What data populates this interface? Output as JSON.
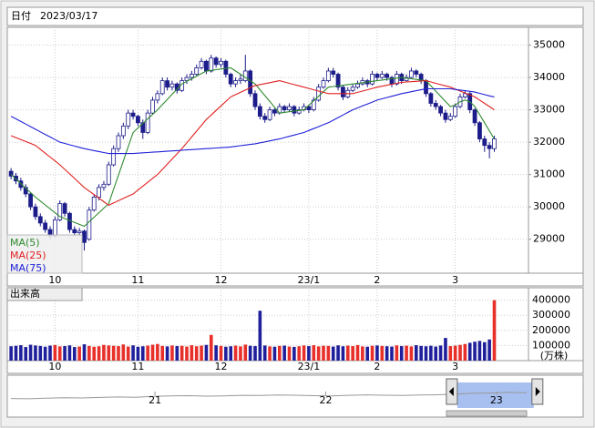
{
  "header": {
    "label": "日付",
    "date": "2023/03/17"
  },
  "chart_data": {
    "type": "candlestick",
    "categories": [
      null,
      null,
      null,
      null,
      null,
      null,
      null,
      null,
      null,
      "10",
      null,
      null,
      null,
      null,
      null,
      null,
      null,
      null,
      null,
      null,
      null,
      null,
      null,
      null,
      null,
      null,
      "11",
      null,
      null,
      null,
      null,
      null,
      null,
      null,
      null,
      null,
      null,
      null,
      null,
      null,
      null,
      null,
      null,
      "12",
      null,
      null,
      null,
      null,
      null,
      null,
      null,
      null,
      null,
      null,
      null,
      null,
      null,
      null,
      null,
      null,
      null,
      "23/1",
      null,
      null,
      null,
      null,
      null,
      null,
      null,
      null,
      null,
      null,
      null,
      null,
      null,
      "2",
      null,
      null,
      null,
      null,
      null,
      null,
      null,
      null,
      null,
      null,
      null,
      null,
      null,
      null,
      null,
      "3",
      null,
      null,
      null,
      null,
      null,
      null,
      null,
      null
    ],
    "candles": [
      [
        31100,
        31200,
        30850,
        30950
      ],
      [
        30950,
        31050,
        30700,
        30800
      ],
      [
        30800,
        30900,
        30500,
        30600
      ],
      [
        30600,
        30700,
        30300,
        30400
      ],
      [
        30400,
        30450,
        29900,
        30000
      ],
      [
        30000,
        30100,
        29600,
        29700
      ],
      [
        29700,
        29800,
        29400,
        29500
      ],
      [
        29500,
        29600,
        29200,
        29300
      ],
      [
        29300,
        29400,
        29000,
        29100
      ],
      [
        29100,
        29700,
        29050,
        29600
      ],
      [
        29600,
        30200,
        29550,
        30100
      ],
      [
        30100,
        30150,
        29700,
        29800
      ],
      [
        29800,
        29850,
        29200,
        29300
      ],
      [
        29300,
        29400,
        29100,
        29200
      ],
      [
        29200,
        29350,
        29100,
        29250
      ],
      [
        29250,
        29300,
        28650,
        28900
      ],
      [
        29000,
        30000,
        28950,
        29900
      ],
      [
        29900,
        30400,
        29850,
        30300
      ],
      [
        30300,
        30700,
        30200,
        30600
      ],
      [
        30600,
        30800,
        30500,
        30700
      ],
      [
        30700,
        31400,
        30650,
        31300
      ],
      [
        31300,
        31900,
        31250,
        31800
      ],
      [
        31800,
        32300,
        31700,
        32200
      ],
      [
        32200,
        32600,
        32100,
        32500
      ],
      [
        32500,
        33000,
        32400,
        32900
      ],
      [
        32900,
        33000,
        32700,
        32800
      ],
      [
        32800,
        32850,
        32500,
        32600
      ],
      [
        32600,
        32700,
        32100,
        32300
      ],
      [
        32300,
        33000,
        32250,
        32900
      ],
      [
        32900,
        33400,
        32850,
        33300
      ],
      [
        33300,
        33600,
        33200,
        33500
      ],
      [
        33500,
        34000,
        33450,
        33900
      ],
      [
        33900,
        34000,
        33600,
        33700
      ],
      [
        33700,
        33900,
        33600,
        33800
      ],
      [
        33800,
        33850,
        33500,
        33600
      ],
      [
        33600,
        34000,
        33550,
        33900
      ],
      [
        33900,
        34100,
        33800,
        34000
      ],
      [
        34000,
        34200,
        33900,
        34100
      ],
      [
        34100,
        34400,
        34050,
        34300
      ],
      [
        34300,
        34600,
        34250,
        34500
      ],
      [
        34500,
        34550,
        34100,
        34200
      ],
      [
        34200,
        34700,
        34150,
        34600
      ],
      [
        34600,
        34650,
        34300,
        34400
      ],
      [
        34400,
        34600,
        34300,
        34500
      ],
      [
        34500,
        34550,
        34000,
        34100
      ],
      [
        34100,
        34150,
        33700,
        33800
      ],
      [
        33800,
        34000,
        33700,
        33900
      ],
      [
        33900,
        34100,
        33800,
        33950
      ],
      [
        33900,
        34700,
        33850,
        34200
      ],
      [
        34200,
        34250,
        33400,
        33500
      ],
      [
        33500,
        33600,
        33000,
        33100
      ],
      [
        33100,
        33200,
        32700,
        32800
      ],
      [
        32800,
        32900,
        32600,
        32700
      ],
      [
        32700,
        33100,
        32650,
        33000
      ],
      [
        33000,
        33050,
        32800,
        32900
      ],
      [
        32900,
        33200,
        32850,
        33100
      ],
      [
        33100,
        33150,
        32900,
        33000
      ],
      [
        33000,
        33200,
        32950,
        33100
      ],
      [
        33100,
        33150,
        32800,
        32900
      ],
      [
        32900,
        33100,
        32850,
        33000
      ],
      [
        33000,
        33200,
        32950,
        33100
      ],
      [
        33100,
        33150,
        32900,
        33000
      ],
      [
        33000,
        33400,
        32950,
        33300
      ],
      [
        33300,
        33800,
        33250,
        33700
      ],
      [
        33700,
        34000,
        33650,
        33900
      ],
      [
        33900,
        34300,
        33850,
        34200
      ],
      [
        34200,
        34300,
        34000,
        34100
      ],
      [
        34100,
        34150,
        33600,
        33700
      ],
      [
        33700,
        33750,
        33300,
        33400
      ],
      [
        33400,
        33700,
        33350,
        33600
      ],
      [
        33600,
        33800,
        33550,
        33700
      ],
      [
        33700,
        33900,
        33650,
        33800
      ],
      [
        33800,
        34000,
        33750,
        33900
      ],
      [
        33900,
        33950,
        33700,
        33800
      ],
      [
        33800,
        34200,
        33750,
        34100
      ],
      [
        34100,
        34150,
        33900,
        34000
      ],
      [
        34000,
        34200,
        33950,
        34100
      ],
      [
        34100,
        34150,
        33900,
        34000
      ],
      [
        34000,
        34050,
        33700,
        33800
      ],
      [
        33800,
        34200,
        33750,
        34100
      ],
      [
        34100,
        34150,
        33800,
        33900
      ],
      [
        33900,
        34100,
        33850,
        34000
      ],
      [
        34000,
        34300,
        33950,
        34200
      ],
      [
        34200,
        34250,
        34000,
        34100
      ],
      [
        34100,
        34150,
        33800,
        33900
      ],
      [
        33900,
        33950,
        33400,
        33500
      ],
      [
        33500,
        33550,
        33100,
        33200
      ],
      [
        33200,
        33300,
        33000,
        33100
      ],
      [
        33100,
        33150,
        32800,
        32900
      ],
      [
        32900,
        33000,
        32600,
        32700
      ],
      [
        32700,
        32900,
        32650,
        32800
      ],
      [
        32800,
        33200,
        32750,
        33100
      ],
      [
        33100,
        33500,
        33050,
        33400
      ],
      [
        33400,
        33600,
        33350,
        33500
      ],
      [
        33500,
        33550,
        32900,
        33000
      ],
      [
        33000,
        33050,
        32500,
        32600
      ],
      [
        32600,
        32650,
        32000,
        32100
      ],
      [
        32100,
        32200,
        31700,
        31900
      ],
      [
        31900,
        32000,
        31500,
        31800
      ],
      [
        31800,
        32200,
        31700,
        32100
      ]
    ],
    "up_color": "#ffffff",
    "down_color": "#1c1c8a",
    "wick_color": "#1c1c8a",
    "series": [
      {
        "name": "MA(5)",
        "color": "#2e8b2e",
        "values": [
          31000,
          30860,
          30720,
          30580,
          30440,
          30300,
          30180,
          30060,
          29940,
          29820,
          29700,
          29640,
          29580,
          29520,
          29460,
          29400,
          29540,
          29680,
          29820,
          29960,
          30100,
          30540,
          30980,
          31420,
          31860,
          32300,
          32440,
          32580,
          32720,
          32860,
          33000,
          33160,
          33320,
          33480,
          33640,
          33800,
          33880,
          33960,
          34040,
          34120,
          34200,
          34220,
          34240,
          34260,
          34280,
          34300,
          34200,
          34100,
          34000,
          33900,
          33800,
          33620,
          33440,
          33260,
          33080,
          32900,
          32920,
          32940,
          32960,
          32980,
          33000,
          33140,
          33280,
          33420,
          33560,
          33700,
          33720,
          33740,
          33760,
          33780,
          33800,
          33820,
          33840,
          33860,
          33880,
          33900,
          33920,
          33940,
          33960,
          33980,
          34000,
          33980,
          33960,
          33940,
          33920,
          33900,
          33740,
          33580,
          33420,
          33260,
          33100,
          33150,
          33250,
          33300,
          33250,
          33100,
          32850,
          32600,
          32350,
          32100
        ]
      },
      {
        "name": "MA(25)",
        "color": "#e02020",
        "values": [
          32200,
          32140,
          32080,
          32020,
          31960,
          31900,
          31780,
          31660,
          31540,
          31420,
          31300,
          31160,
          31020,
          30880,
          30740,
          30600,
          30490,
          30380,
          30270,
          30160,
          30050,
          30120,
          30190,
          30260,
          30330,
          30400,
          30520,
          30640,
          30760,
          30880,
          31000,
          31160,
          31320,
          31480,
          31640,
          31800,
          31980,
          32160,
          32340,
          32520,
          32700,
          32840,
          32980,
          33120,
          33260,
          33400,
          33470,
          33540,
          33610,
          33680,
          33750,
          33780,
          33810,
          33840,
          33870,
          33900,
          33860,
          33820,
          33780,
          33740,
          33700,
          33660,
          33620,
          33580,
          33540,
          33500,
          33500,
          33500,
          33500,
          33500,
          33500,
          33540,
          33580,
          33620,
          33660,
          33700,
          33730,
          33760,
          33790,
          33820,
          33850,
          33860,
          33870,
          33880,
          33890,
          33900,
          33860,
          33820,
          33780,
          33740,
          33700,
          33640,
          33580,
          33520,
          33460,
          33400,
          33300,
          33200,
          33100,
          33000
        ]
      },
      {
        "name": "MA(75)",
        "color": "#2020d8",
        "values": [
          32800,
          32720,
          32640,
          32560,
          32480,
          32400,
          32320,
          32240,
          32160,
          32080,
          32000,
          31960,
          31920,
          31880,
          31840,
          31800,
          31770,
          31740,
          31710,
          31680,
          31650,
          31650,
          31650,
          31650,
          31650,
          31650,
          31660,
          31670,
          31680,
          31690,
          31700,
          31710,
          31720,
          31730,
          31740,
          31750,
          31760,
          31770,
          31780,
          31790,
          31800,
          31810,
          31820,
          31830,
          31840,
          31850,
          31870,
          31890,
          31910,
          31930,
          31950,
          31980,
          32010,
          32040,
          32070,
          32100,
          32140,
          32180,
          32220,
          32260,
          32300,
          32360,
          32420,
          32480,
          32540,
          32600,
          32680,
          32760,
          32840,
          32920,
          33000,
          33060,
          33120,
          33180,
          33240,
          33300,
          33340,
          33380,
          33420,
          33460,
          33500,
          33530,
          33560,
          33590,
          33620,
          33650,
          33650,
          33650,
          33650,
          33650,
          33650,
          33630,
          33610,
          33590,
          33570,
          33550,
          33510,
          33470,
          33430,
          33400
        ]
      }
    ],
    "xlim": [
      -0.4,
      106
    ],
    "ylim": [
      27950,
      35550
    ],
    "yticks": [
      29000,
      30000,
      31000,
      32000,
      33000,
      34000,
      35000
    ],
    "grid": true,
    "volume": {
      "title": "出来高",
      "unit": "(万株)",
      "values": [
        95000,
        98000,
        102000,
        90000,
        105000,
        100000,
        97000,
        92000,
        99000,
        103000,
        94000,
        96000,
        101000,
        90000,
        93000,
        108000,
        97000,
        92000,
        95000,
        104000,
        100000,
        98000,
        96000,
        107000,
        93000,
        101000,
        92000,
        95000,
        99000,
        105000,
        110000,
        97000,
        94000,
        100000,
        96000,
        98000,
        93000,
        102000,
        95000,
        99000,
        104000,
        170000,
        101000,
        97000,
        92000,
        95000,
        99000,
        94000,
        106000,
        98000,
        96000,
        330000,
        100000,
        94000,
        92000,
        97000,
        99000,
        93000,
        91000,
        95000,
        100000,
        96000,
        102000,
        94000,
        98000,
        97000,
        93000,
        101000,
        95000,
        99000,
        96000,
        103000,
        94000,
        92000,
        98000,
        100000,
        97000,
        95000,
        93000,
        101000,
        96000,
        99000,
        94000,
        102000,
        97000,
        95000,
        98000,
        93000,
        100000,
        150000,
        96000,
        99000,
        104000,
        110000,
        118000,
        125000,
        130000,
        122000,
        140000,
        400000
      ],
      "up_color": "#e8302a",
      "down_color": "#1f1f9c",
      "ylim": [
        0,
        470000
      ],
      "yticks": [
        100000,
        200000,
        300000,
        400000
      ]
    }
  },
  "navigator": {
    "values": [
      28500,
      28300,
      28700,
      29000,
      28800,
      29200,
      29500,
      29300,
      29800,
      30100,
      30300,
      30000,
      30200,
      30500,
      30400,
      30700,
      30600,
      30300,
      30100,
      30500,
      30800,
      30600,
      30400,
      30700,
      30900,
      31300,
      31800,
      32000,
      32400,
      32100
    ],
    "color": "#999999",
    "xlim": [
      0,
      29
    ],
    "ylim": [
      20000,
      40000
    ],
    "xticks": [
      {
        "value": 8.1,
        "label": "21"
      },
      {
        "value": 17.7,
        "label": "22"
      },
      {
        "value": 27.3,
        "label": "23"
      }
    ],
    "selection": [
      25.1,
      29.4
    ],
    "selection_color": "#a8c0f0"
  }
}
